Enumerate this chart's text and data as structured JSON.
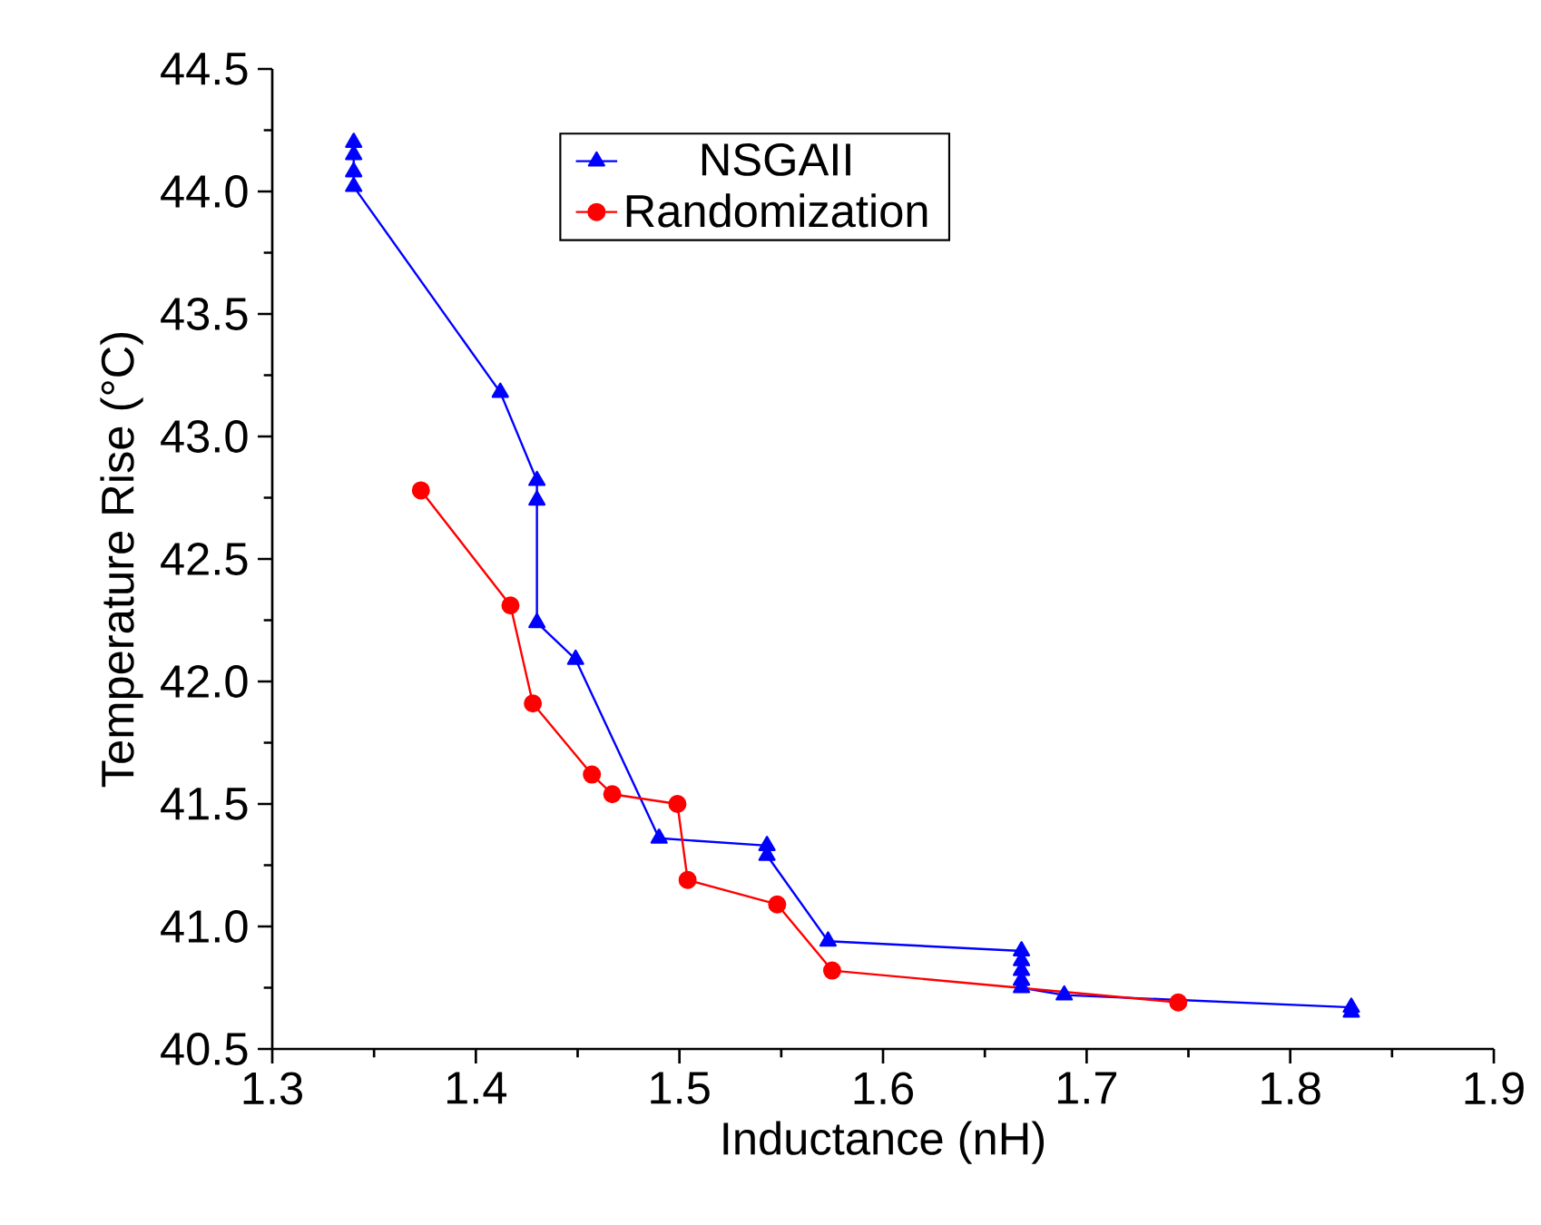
{
  "chart_data": {
    "type": "line",
    "xlabel": "Inductance (nH)",
    "ylabel": "Temperature Rise (°C)",
    "xlim": [
      1.3,
      1.9
    ],
    "xticks": [
      1.3,
      1.4,
      1.5,
      1.6,
      1.7,
      1.8,
      1.9
    ],
    "ylim": [
      40.5,
      44.5
    ],
    "yticks": [
      {
        "value": 40.5,
        "label": "40.5"
      },
      {
        "value": 41.0,
        "label": "41.0"
      },
      {
        "value": 41.5,
        "label": "41.5"
      },
      {
        "value": 42.0,
        "label": "42.0"
      },
      {
        "value": 42.5,
        "label": "42.5"
      },
      {
        "value": 43.0,
        "label": "43.0"
      },
      {
        "value": 43.5,
        "label": "43.5"
      },
      {
        "value": 44.0,
        "label": "44.0"
      },
      {
        "value": 44.5,
        "label": "44.5"
      }
    ],
    "grid": false,
    "legend": "top",
    "series": [
      {
        "name": "NSGAII",
        "color": "#0000ff",
        "marker": "triangle",
        "x": [
          1.34,
          1.34,
          1.34,
          1.34,
          1.412,
          1.43,
          1.43,
          1.43,
          1.449,
          1.49,
          1.543,
          1.543,
          1.573,
          1.668,
          1.668,
          1.668,
          1.668,
          1.668,
          1.689,
          1.83,
          1.83
        ],
        "values": [
          44.2,
          44.15,
          44.08,
          44.02,
          43.18,
          42.82,
          42.74,
          42.24,
          42.09,
          41.36,
          41.33,
          41.29,
          40.94,
          40.9,
          40.86,
          40.82,
          40.78,
          40.75,
          40.72,
          40.67,
          40.65
        ]
      },
      {
        "name": "Randomization",
        "color": "#ff0000",
        "marker": "circle",
        "x": [
          1.373,
          1.417,
          1.428,
          1.457,
          1.467,
          1.499,
          1.504,
          1.548,
          1.575,
          1.745
        ],
        "values": [
          42.78,
          42.31,
          41.91,
          41.62,
          41.54,
          41.5,
          41.19,
          41.09,
          40.82,
          40.69
        ]
      }
    ]
  }
}
